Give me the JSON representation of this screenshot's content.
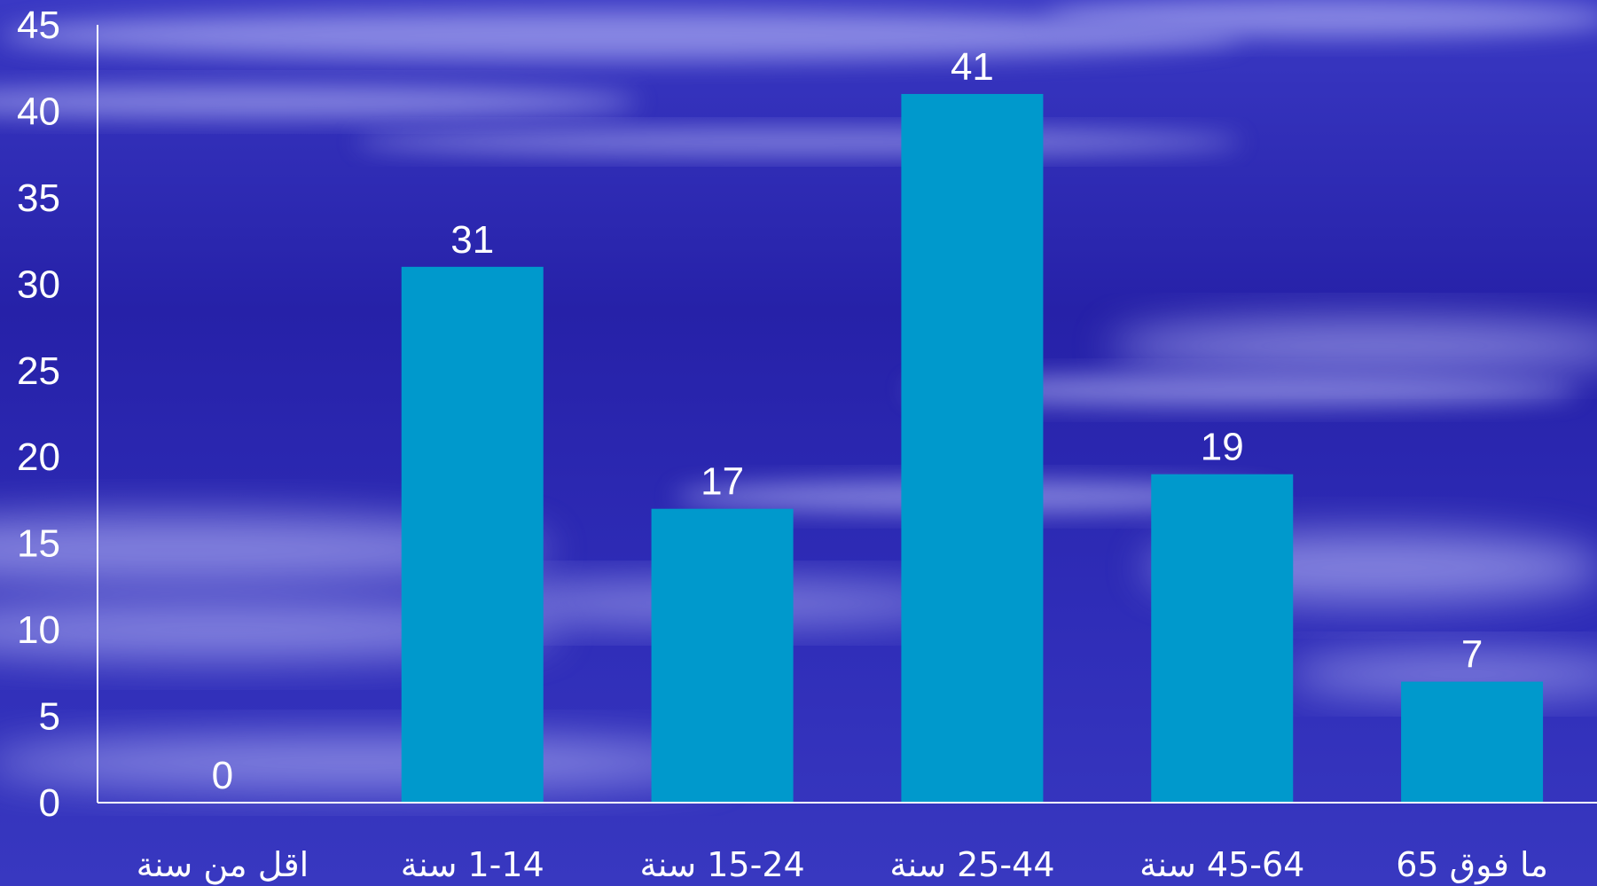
{
  "chart_data": {
    "type": "bar",
    "categories": [
      "اقل من سنة",
      "1-14 سنة",
      "15-24 سنة",
      "25-44 سنة",
      "45-64 سنة",
      "ما فوق 65"
    ],
    "values": [
      0,
      31,
      17,
      41,
      19,
      7
    ],
    "data_labels": [
      "0",
      "31",
      "17",
      "41",
      "19",
      "7"
    ],
    "yticks": [
      "0",
      "5",
      "10",
      "15",
      "20",
      "25",
      "30",
      "35",
      "40",
      "45"
    ],
    "ylim": [
      0,
      45
    ],
    "grid": false,
    "title": "",
    "xlabel": "",
    "ylabel": "",
    "colors": {
      "bar": "#0099cc",
      "axis": "#ffffff",
      "text": "#ffffff",
      "background": "#2b27b0"
    }
  }
}
